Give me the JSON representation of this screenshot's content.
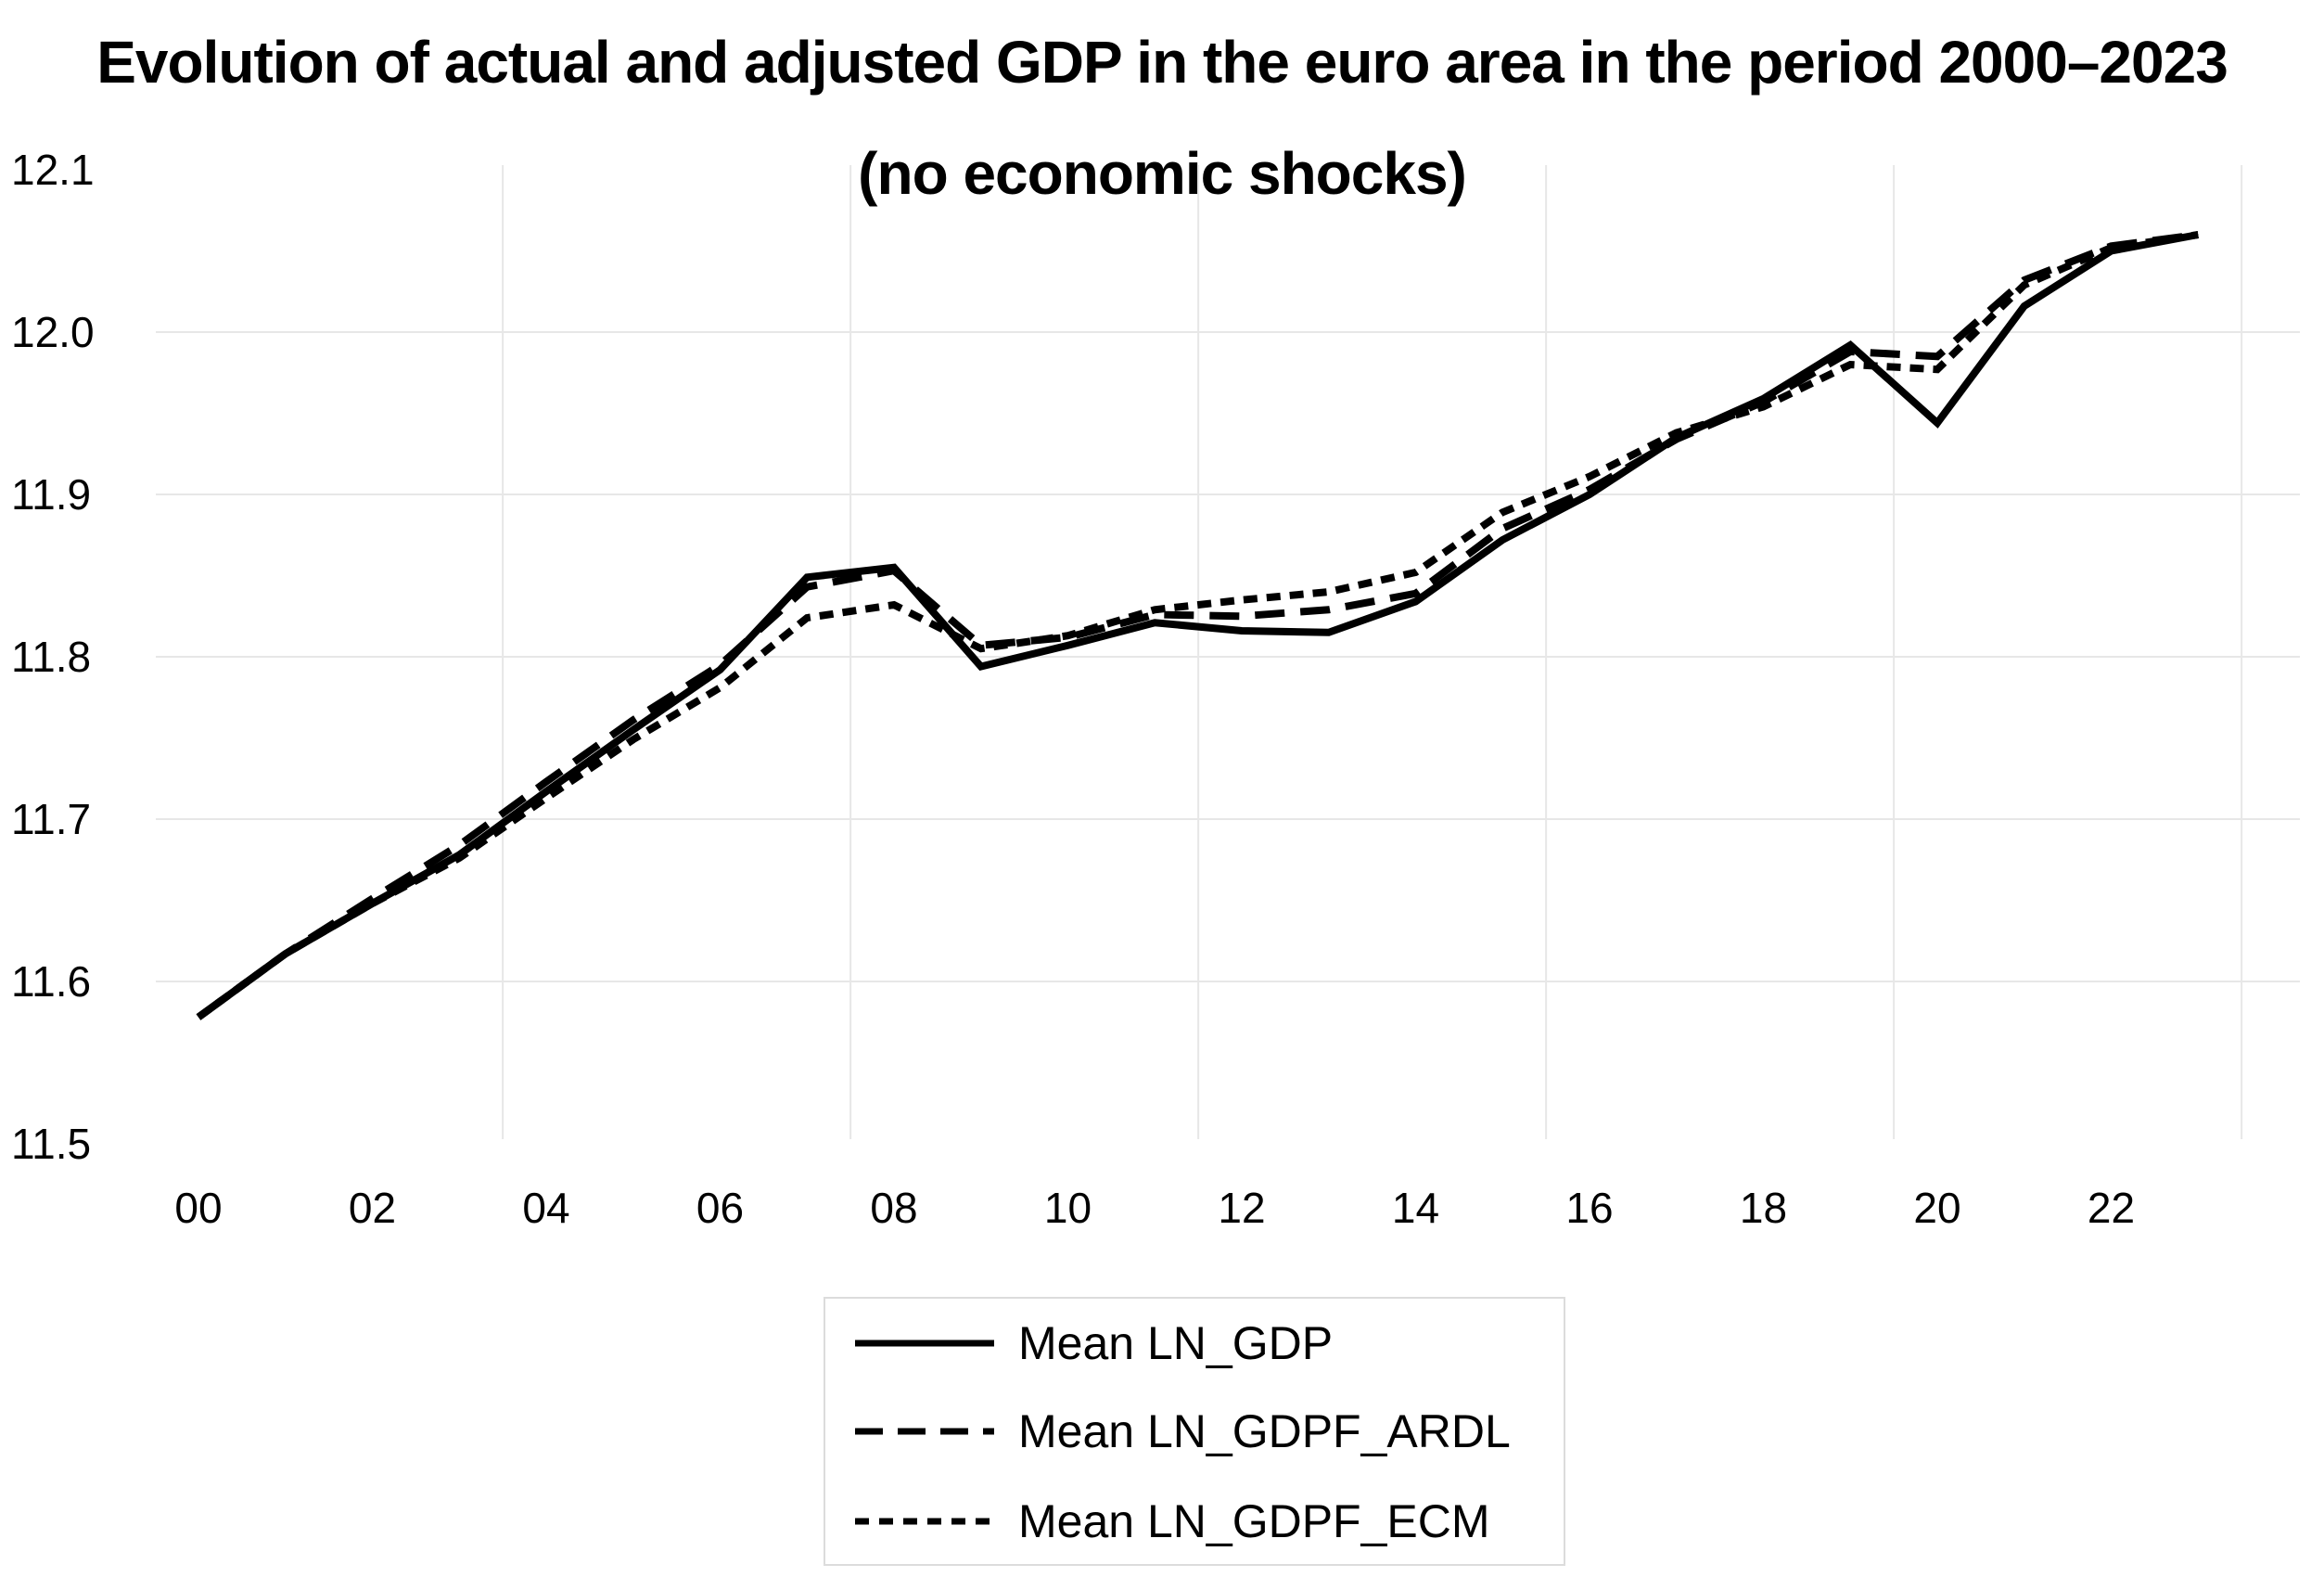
{
  "title": "Evolution of actual and adjusted GDP in the euro area in the period 2000–2023",
  "subtitle": "(no economic shocks)",
  "chart_data": {
    "type": "line",
    "x": [
      2000,
      2001,
      2002,
      2003,
      2004,
      2005,
      2006,
      2007,
      2008,
      2009,
      2010,
      2011,
      2012,
      2013,
      2014,
      2015,
      2016,
      2017,
      2018,
      2019,
      2020,
      2021,
      2022,
      2023
    ],
    "x_tick_years": [
      2000,
      2002,
      2004,
      2006,
      2008,
      2010,
      2012,
      2014,
      2016,
      2018,
      2020,
      2022
    ],
    "x_tick_labels": [
      "00",
      "02",
      "04",
      "06",
      "08",
      "10",
      "12",
      "14",
      "16",
      "18",
      "20",
      "22"
    ],
    "y_tick_labels": [
      "11.5",
      "11.6",
      "11.7",
      "11.8",
      "11.9",
      "12.0",
      "12.1"
    ],
    "y_tick_values": [
      11.5,
      11.6,
      11.7,
      11.8,
      11.9,
      12.0,
      12.1
    ],
    "ylim": [
      11.5,
      12.1
    ],
    "grid": {
      "horizontal_at": [
        11.6,
        11.7,
        11.8,
        11.9,
        12.0
      ],
      "vertical_at_years": [
        2003.5,
        2007.5,
        2011.5,
        2015.5,
        2019.5,
        2023.5
      ]
    },
    "legend_position": "bottom-center",
    "series": [
      {
        "name": "Mean LN_GDP",
        "style": "solid",
        "values": [
          11.578,
          11.617,
          11.648,
          11.678,
          11.717,
          11.755,
          11.792,
          11.849,
          11.855,
          11.794,
          11.807,
          11.821,
          11.816,
          11.815,
          11.834,
          11.872,
          11.9,
          11.935,
          11.959,
          11.992,
          11.944,
          12.016,
          12.05,
          12.06
        ]
      },
      {
        "name": "Mean LN_GDPF_ARDL",
        "style": "long-dash",
        "values": [
          11.578,
          11.617,
          11.651,
          11.684,
          11.723,
          11.761,
          11.795,
          11.843,
          11.853,
          11.807,
          11.812,
          11.826,
          11.825,
          11.829,
          11.839,
          11.879,
          11.903,
          11.934,
          11.957,
          11.988,
          11.985,
          12.032,
          12.053,
          12.06
        ]
      },
      {
        "name": "Mean LN_GDPF_ECM",
        "style": "short-dash",
        "values": [
          11.578,
          11.617,
          11.648,
          11.676,
          11.713,
          11.749,
          11.781,
          11.824,
          11.832,
          11.805,
          11.813,
          11.829,
          11.835,
          11.84,
          11.852,
          11.889,
          11.911,
          11.938,
          11.954,
          11.98,
          11.977,
          12.029,
          12.052,
          12.06
        ]
      }
    ],
    "colors": {
      "line": "#000000",
      "gridline": "#e7e7e7",
      "text": "#000000",
      "legend_border": "#dcdcdc",
      "background": "#ffffff"
    }
  }
}
